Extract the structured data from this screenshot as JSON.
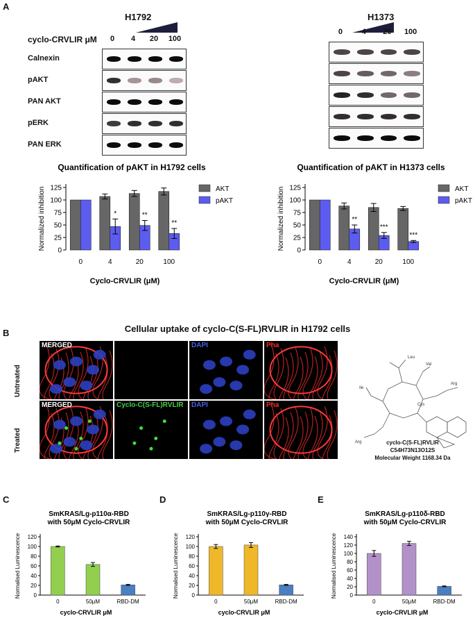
{
  "panelA": {
    "label": "A",
    "h1792": {
      "title": "H1792",
      "dose_prefix": "cyclo-CRVLIR μM",
      "doses": [
        "0",
        "4",
        "20",
        "100"
      ],
      "rows": [
        "Calnexin",
        "pAKT",
        "PAN AKT",
        "pERK",
        "PAN ERK"
      ],
      "band_intensity": [
        [
          0.95,
          0.95,
          0.95,
          0.95
        ],
        [
          0.8,
          0.35,
          0.4,
          0.25
        ],
        [
          0.95,
          0.95,
          0.95,
          0.95
        ],
        [
          0.75,
          0.8,
          0.8,
          0.8
        ],
        [
          0.95,
          0.95,
          0.95,
          0.95
        ]
      ]
    },
    "h1373": {
      "title": "H1373",
      "doses": [
        "0",
        "4",
        "20",
        "100"
      ],
      "band_intensity": [
        [
          0.7,
          0.7,
          0.7,
          0.7
        ],
        [
          0.7,
          0.6,
          0.55,
          0.45
        ],
        [
          0.85,
          0.8,
          0.55,
          0.55
        ],
        [
          0.8,
          0.8,
          0.8,
          0.8
        ],
        [
          0.95,
          0.95,
          0.95,
          0.95
        ]
      ]
    },
    "colors": {
      "akt": "#666666",
      "pakt": "#5d5cf0"
    }
  },
  "chart_data": [
    {
      "type": "bar",
      "title": "Quantification of pAKT in H1792  cells",
      "xlabel": "Cyclo-CRVLIR (μM)",
      "ylabel": "Normalized inhibition",
      "categories": [
        "0",
        "4",
        "20",
        "100"
      ],
      "ylim": [
        0,
        125
      ],
      "yticks": [
        0,
        25,
        50,
        75,
        100,
        125
      ],
      "legend": "right",
      "series": [
        {
          "name": "AKT",
          "values": [
            100,
            107,
            113,
            117
          ],
          "err": [
            0,
            5,
            6,
            7
          ]
        },
        {
          "name": "pAKT",
          "values": [
            100,
            47,
            49,
            33
          ],
          "err": [
            0,
            15,
            10,
            10
          ]
        }
      ],
      "annotations": [
        "",
        "*",
        "**",
        "**"
      ]
    },
    {
      "type": "bar",
      "title": "Quantification of pAKT in H1373 cells",
      "xlabel": "Cyclo-CRVLIR (μM)",
      "ylabel": "Normalized inhibition",
      "categories": [
        "0",
        "4",
        "20",
        "100"
      ],
      "ylim": [
        0,
        125
      ],
      "yticks": [
        0,
        25,
        50,
        75,
        100,
        125
      ],
      "legend": "right",
      "series": [
        {
          "name": "AKT",
          "values": [
            100,
            88,
            85,
            83
          ],
          "err": [
            0,
            6,
            8,
            4
          ]
        },
        {
          "name": "pAKT",
          "values": [
            100,
            42,
            29,
            17
          ],
          "err": [
            0,
            8,
            6,
            2
          ]
        }
      ],
      "annotations": [
        "",
        "**",
        "***",
        "***"
      ]
    },
    {
      "type": "bar",
      "title": "SmKRAS/Lg-p110α-RBD",
      "subtitle": "with 50μM Cyclo-CRVLIR",
      "xlabel": "cyclo-CRVLIR μM",
      "ylabel": "Normalised Luminescence",
      "categories": [
        "0",
        "50μM",
        "RBD-DM"
      ],
      "values": [
        100,
        63,
        21
      ],
      "err": [
        1,
        4,
        1
      ],
      "colors": [
        "#92cf4f",
        "#92cf4f",
        "#4a7fc1"
      ],
      "ylim": [
        0,
        120
      ],
      "yticks": [
        0,
        20,
        40,
        60,
        80,
        100,
        120
      ]
    },
    {
      "type": "bar",
      "title": "SmKRAS/Lg-p110γ-RBD",
      "subtitle": "with 50μM Cyclo-CRVLIR",
      "xlabel": "cyclo-CRVLIR μM",
      "ylabel": "Normalised Luminescence",
      "categories": [
        "0",
        "50μM",
        "RBD-DM"
      ],
      "values": [
        100,
        103,
        21
      ],
      "err": [
        4,
        5,
        1
      ],
      "colors": [
        "#efb82a",
        "#efb82a",
        "#4a7fc1"
      ],
      "ylim": [
        0,
        120
      ],
      "yticks": [
        0,
        20,
        40,
        60,
        80,
        100,
        120
      ]
    },
    {
      "type": "bar",
      "title": "SmKRAS/Lg-p110δ-RBD",
      "subtitle": "with 50μM Cyclo-CRVLIR",
      "xlabel": "cyclo-CRVLIR μM",
      "ylabel": "Normalised Luminescence",
      "categories": [
        "0",
        "50μM",
        "RBD-DM"
      ],
      "values": [
        100,
        124,
        21
      ],
      "err": [
        7,
        5,
        1
      ],
      "colors": [
        "#b291c9",
        "#b291c9",
        "#4a7fc1"
      ],
      "ylim": [
        0,
        140
      ],
      "yticks": [
        0,
        20,
        40,
        60,
        80,
        100,
        120,
        140
      ]
    }
  ],
  "panelB": {
    "label": "B",
    "title": "Cellular uptake of cyclo-C(S-FL)RVLIR in H1792 cells",
    "rows": [
      "Untreated",
      "Treated"
    ],
    "untreated_tiles": [
      "MERGED",
      "",
      "DAPI",
      "Pha"
    ],
    "treated_tiles": [
      "MERGED",
      "Cyclo-C(S-FL)RVLIR",
      "DAPI",
      "Pha"
    ],
    "tile_colors": {
      "merged": "#ffffff",
      "fitc": "#44d044",
      "dapi": "#3b55d0",
      "pha": "#ee3030"
    },
    "structure": {
      "residues": [
        "Leu",
        "Val",
        "Ile",
        "Arg",
        "Cys",
        "Arg"
      ],
      "name": "cyclo-C(S-FL)RVLIR",
      "formula": "C54H73N13O12S",
      "weight": "Molecular Weight 1168.34 Da"
    }
  },
  "panelC": {
    "label": "C"
  },
  "panelD": {
    "label": "D"
  },
  "panelE": {
    "label": "E"
  }
}
